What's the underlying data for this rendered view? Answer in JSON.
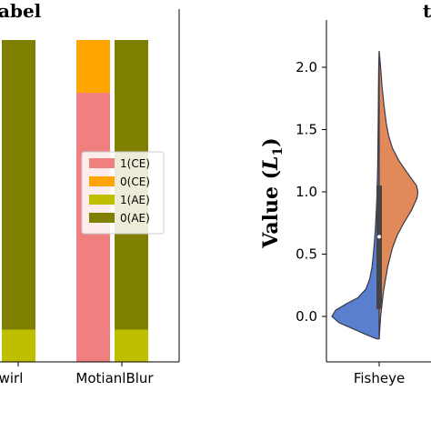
{
  "chart_data": [
    {
      "type": "bar",
      "stacked": true,
      "title": "abel",
      "categories": [
        "wirl",
        "MotianlBlur"
      ],
      "series": [
        {
          "name": "1(CE)",
          "values": [
            0,
            0.836
          ],
          "color": "#F08080"
        },
        {
          "name": "0(CE)",
          "values": [
            0,
            0.164
          ],
          "color": "#FFA500"
        },
        {
          "name": "1(AE)",
          "values": [
            0.1,
            0.1
          ],
          "color": "#BFBF00"
        },
        {
          "name": "0(AE)",
          "values": [
            0.9,
            0.9
          ],
          "color": "#808000"
        }
      ],
      "bar_layout": [
        {
          "category": "wirl",
          "ce": {
            "1(CE)": 0,
            "0(CE)": 0
          },
          "ae": {
            "1(AE)": 0.1,
            "0(AE)": 0.9
          }
        },
        {
          "category": "MotianlBlur",
          "ce": {
            "1(CE)": 0.836,
            "0(CE)": 0.164
          },
          "ae": {
            "1(AE)": 0.1,
            "0(AE)": 0.9
          }
        }
      ],
      "legend": {
        "placement": "center-right",
        "entries": [
          {
            "label": "1(CE)",
            "color": "#F08080"
          },
          {
            "label": "0(CE)",
            "color": "#FFA500"
          },
          {
            "label": "1(AE)",
            "color": "#BFBF00"
          },
          {
            "label": "0(AE)",
            "color": "#808000"
          }
        ]
      }
    },
    {
      "type": "violin",
      "title": "t",
      "ylabel_main": "Value (",
      "ylabel_var": "L",
      "ylabel_sub": "1",
      "ylabel_close": ")",
      "ylim": [
        -0.2,
        2.3
      ],
      "yticks": [
        "0.0",
        "0.5",
        "1.0",
        "1.5",
        "2.0"
      ],
      "ytick_values": [
        0.0,
        0.5,
        1.0,
        1.5,
        2.0
      ],
      "categories": [
        "Fisheye"
      ],
      "left_half": {
        "color": "#5A7FCE",
        "profile": [
          [
            -0.18,
            0.05
          ],
          [
            -0.15,
            0.25
          ],
          [
            -0.1,
            0.55
          ],
          [
            -0.05,
            0.85
          ],
          [
            0.0,
            1.0
          ],
          [
            0.05,
            0.92
          ],
          [
            0.1,
            0.7
          ],
          [
            0.15,
            0.45
          ],
          [
            0.22,
            0.28
          ],
          [
            0.3,
            0.2
          ],
          [
            0.4,
            0.15
          ],
          [
            0.55,
            0.11
          ],
          [
            0.7,
            0.08
          ],
          [
            0.85,
            0.06
          ],
          [
            1.0,
            0.045
          ],
          [
            1.2,
            0.03
          ],
          [
            1.4,
            0.025
          ],
          [
            1.6,
            0.02
          ],
          [
            1.8,
            0.015
          ],
          [
            2.0,
            0.01
          ],
          [
            2.13,
            0.0
          ]
        ]
      },
      "right_half": {
        "color": "#E08A5A",
        "profile": [
          [
            -0.18,
            0.0
          ],
          [
            0.0,
            0.03
          ],
          [
            0.2,
            0.09
          ],
          [
            0.4,
            0.18
          ],
          [
            0.55,
            0.28
          ],
          [
            0.65,
            0.38
          ],
          [
            0.75,
            0.52
          ],
          [
            0.85,
            0.68
          ],
          [
            0.95,
            0.8
          ],
          [
            1.0,
            0.82
          ],
          [
            1.05,
            0.79
          ],
          [
            1.15,
            0.6
          ],
          [
            1.25,
            0.42
          ],
          [
            1.35,
            0.28
          ],
          [
            1.45,
            0.2
          ],
          [
            1.55,
            0.15
          ],
          [
            1.7,
            0.1
          ],
          [
            1.85,
            0.06
          ],
          [
            2.0,
            0.03
          ],
          [
            2.13,
            0.0
          ]
        ]
      },
      "box": {
        "q1": 0.06,
        "q3": 1.05,
        "median": 0.64,
        "whisker_low": 0.06,
        "whisker_high": 1.05
      }
    }
  ]
}
